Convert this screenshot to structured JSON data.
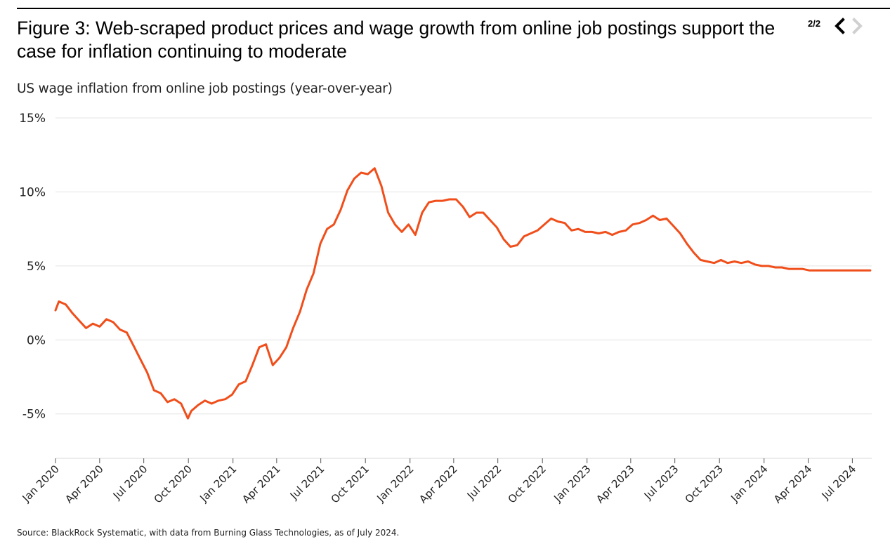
{
  "header": {
    "title": "Figure 3: Web-scraped product prices and wage growth from online job postings support the case for inflation continuing to moderate",
    "pager": "2/2",
    "prev_icon": "chevron-left-icon",
    "next_icon": "chevron-right-icon"
  },
  "footer": {
    "source": "Source: BlackRock Systematic, with data from Burning Glass Technologies, as of July 2024."
  },
  "colors": {
    "line": "#f04e1a",
    "grid": "#e4e4e4",
    "nav_active": "#000000",
    "nav_disabled": "#d0d0d0"
  },
  "chart_data": {
    "type": "line",
    "title": "US wage inflation from online job postings (year-over-year)",
    "xlabel": "",
    "ylabel": "",
    "ylim": [
      -8,
      15
    ],
    "yticks": [
      15,
      10,
      5,
      0,
      -5
    ],
    "ytick_labels": [
      "15%",
      "10%",
      "5%",
      "0%",
      "-5%"
    ],
    "xlim": [
      "2020-01-01",
      "2024-08-10"
    ],
    "xticks": [
      "2020-01-01",
      "2020-04-01",
      "2020-07-01",
      "2020-10-01",
      "2021-01-01",
      "2021-04-01",
      "2021-07-01",
      "2021-10-01",
      "2022-01-01",
      "2022-04-01",
      "2022-07-01",
      "2022-10-01",
      "2023-01-01",
      "2023-04-01",
      "2023-07-01",
      "2023-10-01",
      "2024-01-01",
      "2024-04-01",
      "2024-07-01"
    ],
    "xtick_labels": [
      "Jan 2020",
      "Apr 2020",
      "Jul 2020",
      "Oct 2020",
      "Jan 2021",
      "Apr 2021",
      "Jul 2021",
      "Oct 2021",
      "Jan 2022",
      "Apr 2022",
      "Jul 2022",
      "Oct 2022",
      "Jan 2023",
      "Apr 2023",
      "Jul 2023",
      "Oct 2023",
      "Jan 2024",
      "Apr 2024",
      "Jul 2024"
    ],
    "grid": true,
    "legend": "none",
    "series": [
      {
        "x": [
          "2020-01-01",
          "2020-01-08",
          "2020-01-22",
          "2020-02-05",
          "2020-02-19",
          "2020-03-04",
          "2020-03-18",
          "2020-04-01",
          "2020-04-15",
          "2020-04-29",
          "2020-05-13",
          "2020-05-27",
          "2020-06-10",
          "2020-06-24",
          "2020-07-08",
          "2020-07-22",
          "2020-08-05",
          "2020-08-19",
          "2020-09-02",
          "2020-09-16",
          "2020-09-30",
          "2020-10-07",
          "2020-10-21",
          "2020-11-04",
          "2020-11-18",
          "2020-12-02",
          "2020-12-16",
          "2020-12-30",
          "2021-01-13",
          "2021-01-27",
          "2021-02-10",
          "2021-02-24",
          "2021-03-10",
          "2021-03-24",
          "2021-04-07",
          "2021-04-21",
          "2021-05-05",
          "2021-05-19",
          "2021-06-02",
          "2021-06-16",
          "2021-06-30",
          "2021-07-14",
          "2021-07-28",
          "2021-08-11",
          "2021-08-25",
          "2021-09-08",
          "2021-09-22",
          "2021-10-06",
          "2021-10-20",
          "2021-11-03",
          "2021-11-17",
          "2021-12-01",
          "2021-12-15",
          "2021-12-29",
          "2022-01-12",
          "2022-01-26",
          "2022-02-09",
          "2022-02-23",
          "2022-03-09",
          "2022-03-23",
          "2022-04-06",
          "2022-04-20",
          "2022-05-04",
          "2022-05-18",
          "2022-06-01",
          "2022-06-15",
          "2022-06-29",
          "2022-07-13",
          "2022-07-27",
          "2022-08-10",
          "2022-08-24",
          "2022-09-07",
          "2022-09-21",
          "2022-10-05",
          "2022-10-19",
          "2022-11-02",
          "2022-11-16",
          "2022-11-30",
          "2022-12-14",
          "2022-12-28",
          "2023-01-11",
          "2023-01-25",
          "2023-02-08",
          "2023-02-22",
          "2023-03-08",
          "2023-03-22",
          "2023-04-05",
          "2023-04-19",
          "2023-05-03",
          "2023-05-17",
          "2023-05-31",
          "2023-06-14",
          "2023-06-28",
          "2023-07-12",
          "2023-07-26",
          "2023-08-09",
          "2023-08-23",
          "2023-09-06",
          "2023-09-20",
          "2023-10-04",
          "2023-10-18",
          "2023-11-01",
          "2023-11-15",
          "2023-11-29",
          "2023-12-13",
          "2023-12-27",
          "2024-01-10",
          "2024-01-24",
          "2024-02-07",
          "2024-02-21",
          "2024-03-06",
          "2024-03-20",
          "2024-04-03",
          "2024-04-17",
          "2024-05-01",
          "2024-05-15",
          "2024-05-29",
          "2024-06-12",
          "2024-06-26",
          "2024-07-10",
          "2024-07-24",
          "2024-08-07"
        ],
        "values": [
          2.0,
          2.6,
          2.4,
          1.8,
          1.3,
          0.8,
          1.1,
          0.9,
          1.4,
          1.2,
          0.7,
          0.5,
          -0.4,
          -1.3,
          -2.2,
          -3.4,
          -3.6,
          -4.2,
          -4.0,
          -4.3,
          -5.3,
          -4.8,
          -4.4,
          -4.1,
          -4.3,
          -4.1,
          -4.0,
          -3.7,
          -3.0,
          -2.8,
          -1.7,
          -0.5,
          -0.3,
          -1.7,
          -1.2,
          -0.5,
          0.8,
          1.9,
          3.4,
          4.5,
          6.5,
          7.5,
          7.8,
          8.8,
          10.1,
          10.9,
          11.3,
          11.2,
          11.6,
          10.4,
          8.6,
          7.8,
          7.3,
          7.8,
          7.1,
          8.6,
          9.3,
          9.4,
          9.4,
          9.5,
          9.5,
          9.0,
          8.3,
          8.6,
          8.6,
          8.1,
          7.6,
          6.8,
          6.3,
          6.4,
          7.0,
          7.2,
          7.4,
          7.8,
          8.2,
          8.0,
          7.9,
          7.4,
          7.5,
          7.3,
          7.3,
          7.2,
          7.3,
          7.1,
          7.3,
          7.4,
          7.8,
          7.9,
          8.1,
          8.4,
          8.1,
          8.2,
          7.7,
          7.2,
          6.5,
          5.9,
          5.4,
          5.3,
          5.2,
          5.4,
          5.2,
          5.3,
          5.2,
          5.3,
          5.1,
          5.0,
          5.0,
          4.9,
          4.9,
          4.8,
          4.8,
          4.8,
          4.7,
          4.7,
          4.7,
          4.7,
          4.7,
          4.7,
          4.7,
          4.7,
          4.7,
          4.7
        ]
      }
    ]
  }
}
